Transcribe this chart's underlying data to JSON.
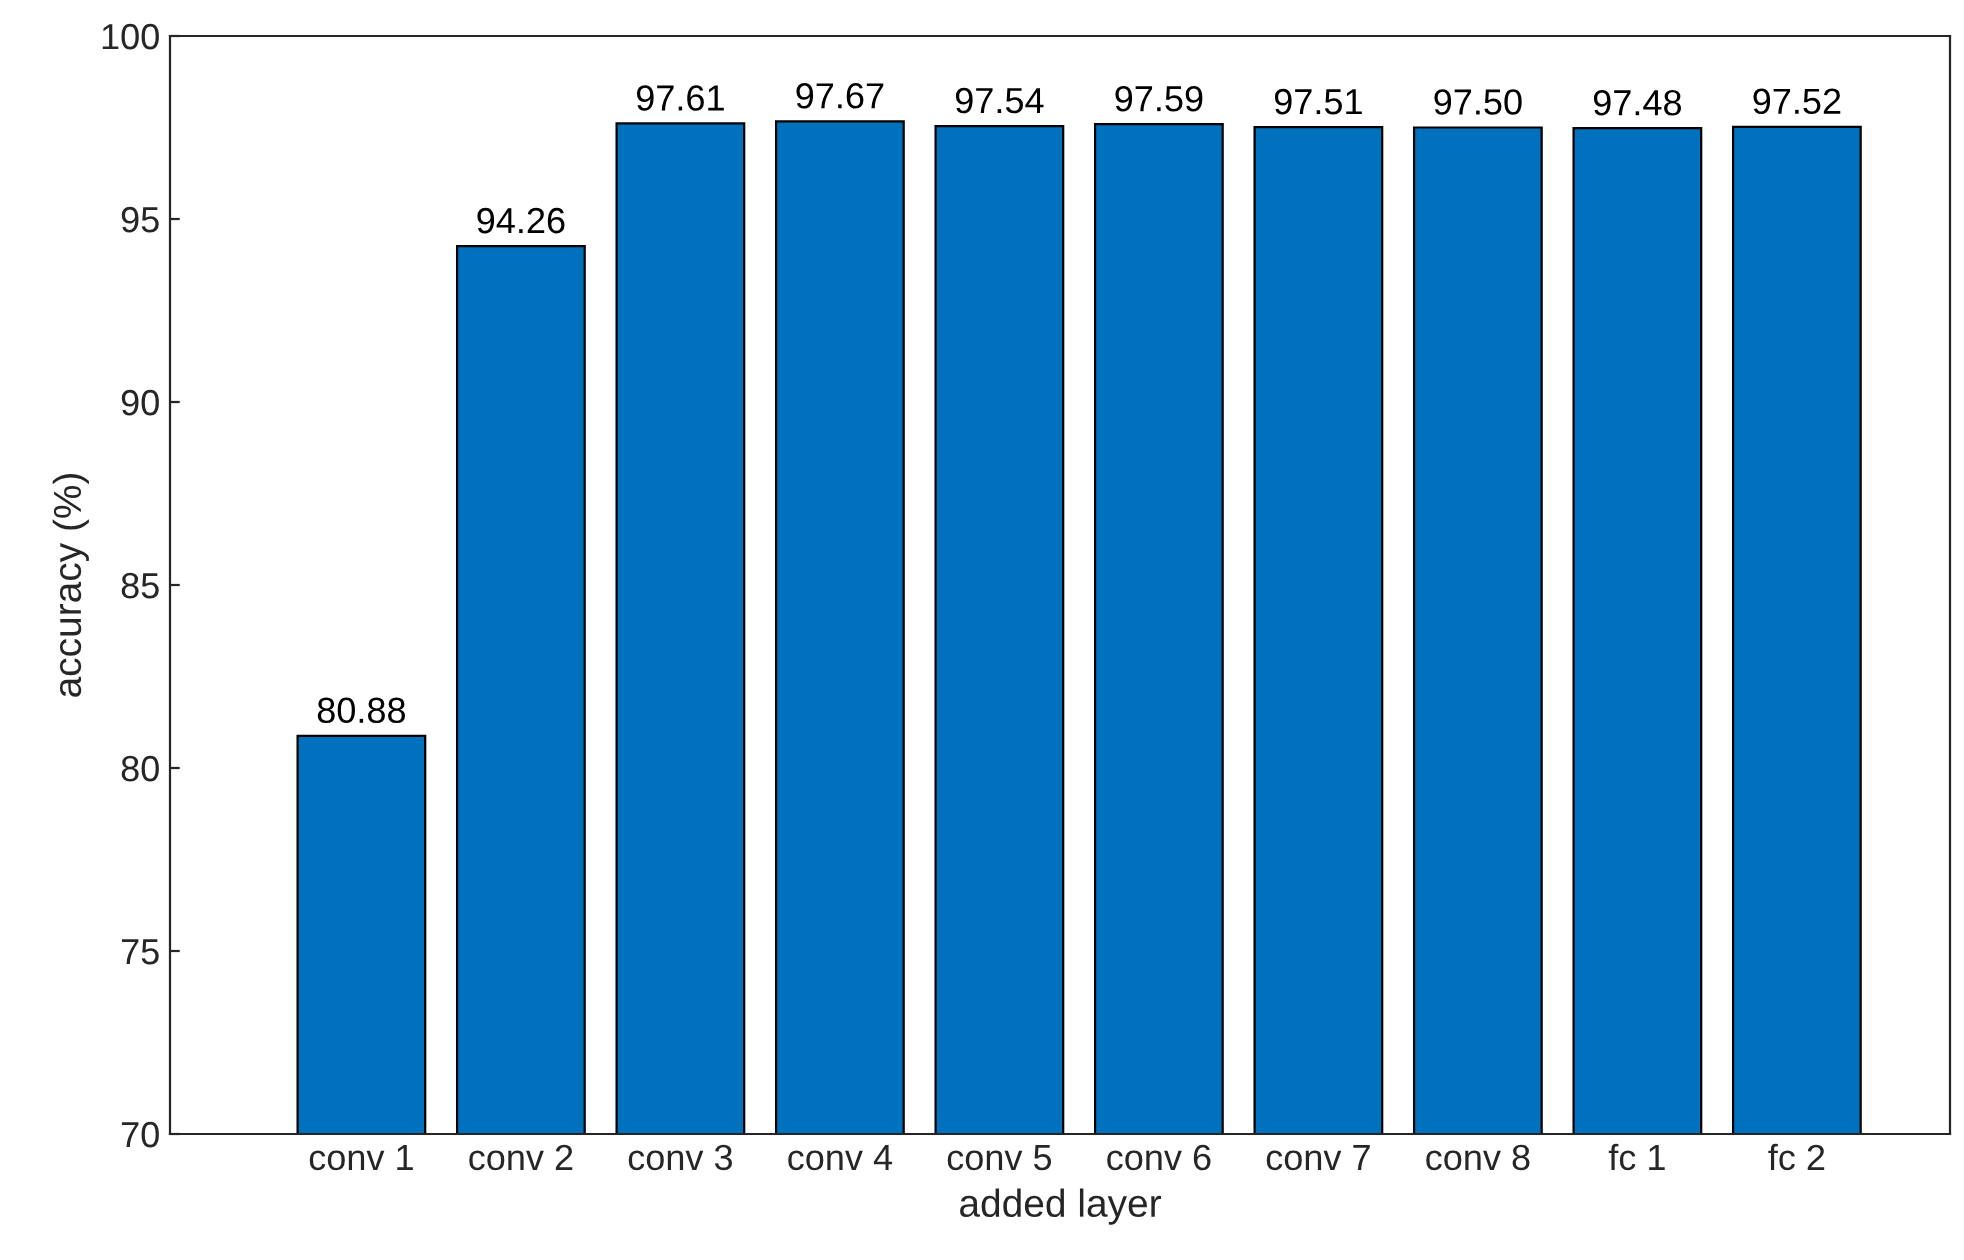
{
  "chart_data": {
    "type": "bar",
    "xlabel": "added layer",
    "ylabel": "accuracy (%)",
    "categories": [
      "conv 1",
      "conv 2",
      "conv 3",
      "conv 4",
      "conv 5",
      "conv 6",
      "conv 7",
      "conv 8",
      "fc 1",
      "fc 2"
    ],
    "values": [
      80.88,
      94.26,
      97.61,
      97.67,
      97.54,
      97.59,
      97.51,
      97.5,
      97.48,
      97.52
    ],
    "value_labels": [
      "80.88",
      "94.26",
      "97.61",
      "97.67",
      "97.54",
      "97.59",
      "97.51",
      "97.50",
      "97.48",
      "97.52"
    ],
    "color": "#0072bd",
    "ylim": [
      70,
      100
    ],
    "yticks": [
      70,
      75,
      80,
      85,
      90,
      95,
      100
    ],
    "grid": false
  }
}
